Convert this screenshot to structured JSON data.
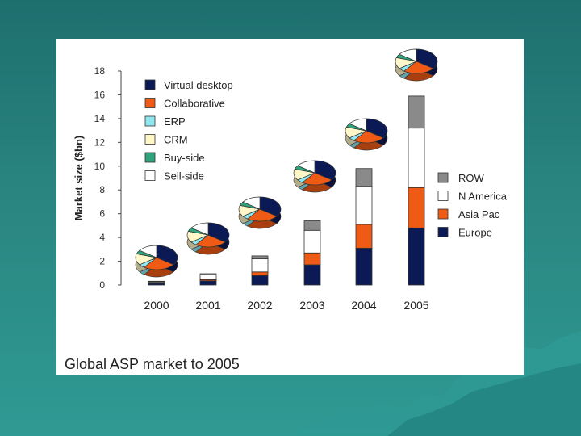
{
  "caption": "Global ASP market to 2005",
  "colors": {
    "europe": "#0b1a55",
    "asia_pac": "#ef5a14",
    "n_america": "#ffffff",
    "row": "#8a8a8a",
    "virtual_desktop": "#0b1a55",
    "collaborative": "#ef5a14",
    "erp": "#8fe8f0",
    "crm": "#fff7c8",
    "buy_side": "#2fa37b",
    "sell_side": "#ffffff"
  },
  "chart_data": {
    "type": "bar",
    "stacked": true,
    "title": "",
    "xlabel": "",
    "ylabel": "Market size ($bn)",
    "ylim": [
      0,
      18
    ],
    "yticks": [
      "0",
      "2",
      "4",
      "6",
      "8",
      "10",
      "12",
      "14",
      "16",
      "18"
    ],
    "categories": [
      "2000",
      "2001",
      "2002",
      "2003",
      "2004",
      "2005"
    ],
    "series": [
      {
        "name": "Europe",
        "color": "#0b1a55",
        "values": [
          0.15,
          0.35,
          0.8,
          1.7,
          3.1,
          4.8
        ]
      },
      {
        "name": "Asia Pac",
        "color": "#ef5a14",
        "values": [
          0.05,
          0.1,
          0.3,
          1.0,
          2.0,
          3.4
        ]
      },
      {
        "name": "N America",
        "color": "#ffffff",
        "values": [
          0.1,
          0.4,
          1.1,
          1.9,
          3.2,
          5.0
        ]
      },
      {
        "name": "ROW",
        "color": "#8a8a8a",
        "values": [
          0.02,
          0.1,
          0.25,
          0.8,
          1.5,
          2.7
        ]
      }
    ],
    "series_legend_position": "right",
    "pie_legend": [
      {
        "name": "Virtual desktop",
        "color": "#0b1a55"
      },
      {
        "name": "Collaborative",
        "color": "#ef5a14"
      },
      {
        "name": "ERP",
        "color": "#8fe8f0"
      },
      {
        "name": "CRM",
        "color": "#fff7c8"
      },
      {
        "name": "Buy-side",
        "color": "#2fa37b"
      },
      {
        "name": "Sell-side",
        "color": "#ffffff"
      }
    ],
    "pie_legend_position": "top-left",
    "pies": [
      {
        "category": "2000",
        "shares": [
          35,
          25,
          5,
          15,
          5,
          15
        ]
      },
      {
        "category": "2001",
        "shares": [
          35,
          25,
          5,
          15,
          5,
          15
        ]
      },
      {
        "category": "2002",
        "shares": [
          35,
          25,
          5,
          15,
          5,
          15
        ]
      },
      {
        "category": "2003",
        "shares": [
          35,
          25,
          5,
          15,
          5,
          15
        ]
      },
      {
        "category": "2004",
        "shares": [
          35,
          25,
          5,
          15,
          5,
          15
        ]
      },
      {
        "category": "2005",
        "shares": [
          35,
          25,
          5,
          15,
          5,
          15
        ]
      }
    ],
    "grid": false
  }
}
